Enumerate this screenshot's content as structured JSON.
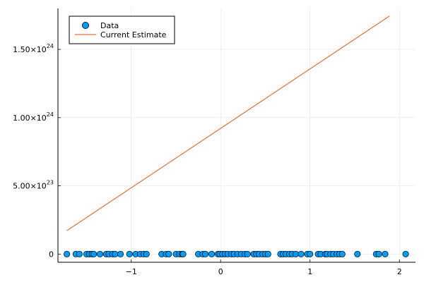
{
  "chart_data": {
    "type": "scatter",
    "xlim": [
      -1.82,
      2.18
    ],
    "ylim": [
      -6e+22,
      1.8e+24
    ],
    "x_ticks": [
      {
        "value": -1,
        "label": "−1"
      },
      {
        "value": 0,
        "label": "0"
      },
      {
        "value": 1,
        "label": "1"
      },
      {
        "value": 2,
        "label": "2"
      }
    ],
    "y_ticks": [
      {
        "value": 0,
        "mantissa": "0",
        "exponent": ""
      },
      {
        "value": 5e+23,
        "mantissa": "5.00×10",
        "exponent": "23"
      },
      {
        "value": 1e+24,
        "mantissa": "1.00×10",
        "exponent": "24"
      },
      {
        "value": 1.5e+24,
        "mantissa": "1.50×10",
        "exponent": "24"
      }
    ],
    "grid": true,
    "legend_position": "top-left",
    "series": [
      {
        "name": "Data",
        "kind": "scatter",
        "color": "#009af9",
        "x": [
          -1.72,
          -1.62,
          -1.58,
          -1.5,
          -1.47,
          -1.44,
          -1.42,
          -1.35,
          -1.28,
          -1.25,
          -1.21,
          -1.18,
          -1.12,
          -1.02,
          -0.95,
          -0.9,
          -0.86,
          -0.83,
          -0.66,
          -0.61,
          -0.58,
          -0.5,
          -0.46,
          -0.43,
          -0.42,
          -0.25,
          -0.2,
          -0.17,
          -0.1,
          -0.03,
          -0.01,
          0.02,
          0.05,
          0.08,
          0.12,
          0.15,
          0.19,
          0.23,
          0.27,
          0.3,
          0.37,
          0.4,
          0.43,
          0.47,
          0.5,
          0.53,
          0.67,
          0.7,
          0.73,
          0.77,
          0.8,
          0.84,
          0.9,
          0.97,
          1.0,
          1.09,
          1.12,
          1.17,
          1.19,
          1.23,
          1.26,
          1.3,
          1.33,
          1.36,
          1.53,
          1.74,
          1.77,
          1.84,
          2.07
        ],
        "y": [
          0,
          0,
          0,
          0,
          0,
          0,
          0,
          0,
          0,
          0,
          0,
          0,
          0,
          0,
          0,
          0,
          0,
          0,
          0,
          0,
          0,
          0,
          0,
          0,
          0,
          0,
          0,
          0,
          0,
          0,
          0,
          0,
          0,
          0,
          0,
          0,
          0,
          0,
          0,
          0,
          0,
          0,
          0,
          0,
          0,
          0,
          0,
          0,
          0,
          0,
          0,
          0,
          0,
          0,
          0,
          0,
          0,
          0,
          0,
          0,
          0,
          0,
          0,
          0,
          0,
          0,
          0,
          0,
          0
        ]
      },
      {
        "name": "Current Estimate",
        "kind": "line",
        "color": "#e26f46",
        "x": [
          -1.72,
          1.89
        ],
        "y": [
          1.72e+23,
          1.745e+24
        ]
      }
    ]
  }
}
